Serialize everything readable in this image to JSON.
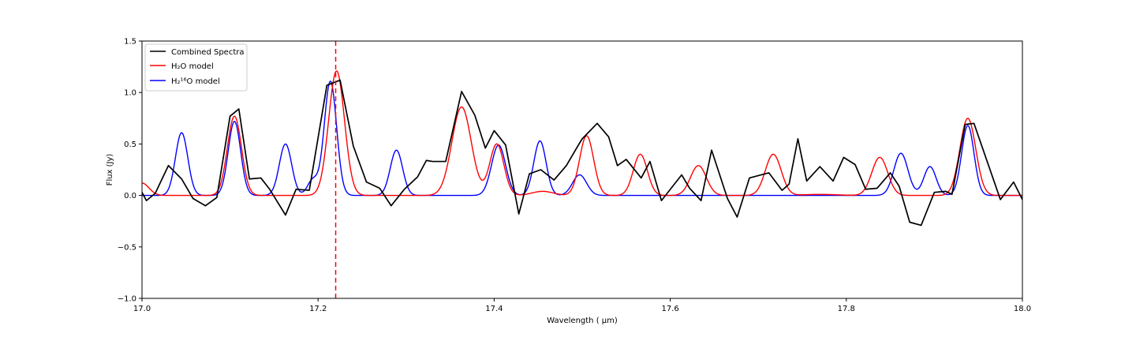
{
  "chart_data": {
    "type": "line",
    "xlabel": "Wavelength ( μm)",
    "ylabel": "Flux (Jy)",
    "xlim": [
      17.0,
      18.0
    ],
    "ylim": [
      -1.0,
      1.5
    ],
    "xticks": [
      "17.0",
      "17.2",
      "17.4",
      "17.6",
      "17.8",
      "18.0"
    ],
    "xtick_values": [
      17.0,
      17.2,
      17.4,
      17.6,
      17.8,
      18.0
    ],
    "yticks": [
      "−1.0",
      "−0.5",
      "0.0",
      "0.5",
      "1.0",
      "1.5"
    ],
    "ytick_values": [
      -1.0,
      -0.5,
      0.0,
      0.5,
      1.0,
      1.5
    ],
    "grid": false,
    "legend_position": "top-left",
    "vline": {
      "x": 17.22,
      "color": "#ff0000",
      "style": "dashed"
    },
    "series": [
      {
        "name": "Combined Spectra",
        "color": "#000000",
        "x": [
          17.0,
          17.005,
          17.015,
          17.03,
          17.045,
          17.058,
          17.072,
          17.085,
          17.1,
          17.11,
          17.122,
          17.135,
          17.145,
          17.163,
          17.175,
          17.19,
          17.21,
          17.225,
          17.24,
          17.255,
          17.27,
          17.283,
          17.298,
          17.313,
          17.323,
          17.33,
          17.345,
          17.363,
          17.378,
          17.39,
          17.4,
          17.413,
          17.428,
          17.44,
          17.453,
          17.468,
          17.482,
          17.495,
          17.5,
          17.517,
          17.53,
          17.54,
          17.55,
          17.567,
          17.577,
          17.59,
          17.613,
          17.622,
          17.635,
          17.647,
          17.665,
          17.676,
          17.69,
          17.712,
          17.727,
          17.735,
          17.745,
          17.755,
          17.77,
          17.785,
          17.797,
          17.81,
          17.822,
          17.835,
          17.85,
          17.86,
          17.872,
          17.885,
          17.9,
          17.913,
          17.92,
          17.935,
          17.945,
          17.96,
          17.975,
          17.99,
          18.0
        ],
        "y": [
          0.03,
          -0.05,
          0.02,
          0.29,
          0.16,
          -0.03,
          -0.1,
          -0.02,
          0.77,
          0.84,
          0.16,
          0.17,
          0.06,
          -0.19,
          0.06,
          0.05,
          1.07,
          1.12,
          0.48,
          0.13,
          0.07,
          -0.1,
          0.06,
          0.18,
          0.34,
          0.33,
          0.33,
          1.01,
          0.78,
          0.46,
          0.63,
          0.49,
          -0.18,
          0.21,
          0.25,
          0.15,
          0.29,
          0.48,
          0.55,
          0.7,
          0.57,
          0.29,
          0.35,
          0.17,
          0.33,
          -0.05,
          0.2,
          0.07,
          -0.05,
          0.44,
          -0.03,
          -0.21,
          0.17,
          0.22,
          0.05,
          0.11,
          0.55,
          0.14,
          0.28,
          0.14,
          0.37,
          0.3,
          0.06,
          0.07,
          0.22,
          0.09,
          -0.26,
          -0.29,
          0.03,
          0.04,
          0.01,
          0.69,
          0.7,
          0.33,
          -0.04,
          0.13,
          -0.04
        ]
      },
      {
        "name": "H₂O model",
        "color": "#ff0000",
        "baseline": 0.0,
        "peaks": [
          [
            17.0,
            0.12,
            0.008
          ],
          [
            17.105,
            0.77,
            0.008
          ],
          [
            17.221,
            1.21,
            0.009
          ],
          [
            17.363,
            0.86,
            0.011
          ],
          [
            17.403,
            0.5,
            0.008
          ],
          [
            17.455,
            0.04,
            0.012
          ],
          [
            17.505,
            0.58,
            0.008
          ],
          [
            17.566,
            0.4,
            0.008
          ],
          [
            17.632,
            0.29,
            0.009
          ],
          [
            17.717,
            0.4,
            0.009
          ],
          [
            17.77,
            0.01,
            0.02
          ],
          [
            17.838,
            0.37,
            0.009
          ],
          [
            17.938,
            0.75,
            0.009
          ]
        ]
      },
      {
        "name": "H₂¹⁶O model",
        "color": "#0000ff",
        "baseline": 0.0,
        "peaks": [
          [
            17.045,
            0.61,
            0.007
          ],
          [
            17.105,
            0.72,
            0.007
          ],
          [
            17.163,
            0.5,
            0.007
          ],
          [
            17.194,
            0.15,
            0.006
          ],
          [
            17.214,
            1.11,
            0.007
          ],
          [
            17.289,
            0.44,
            0.007
          ],
          [
            17.405,
            0.49,
            0.008
          ],
          [
            17.452,
            0.53,
            0.007
          ],
          [
            17.497,
            0.2,
            0.008
          ],
          [
            17.862,
            0.41,
            0.008
          ],
          [
            17.895,
            0.28,
            0.007
          ],
          [
            17.938,
            0.68,
            0.007
          ]
        ]
      }
    ]
  }
}
